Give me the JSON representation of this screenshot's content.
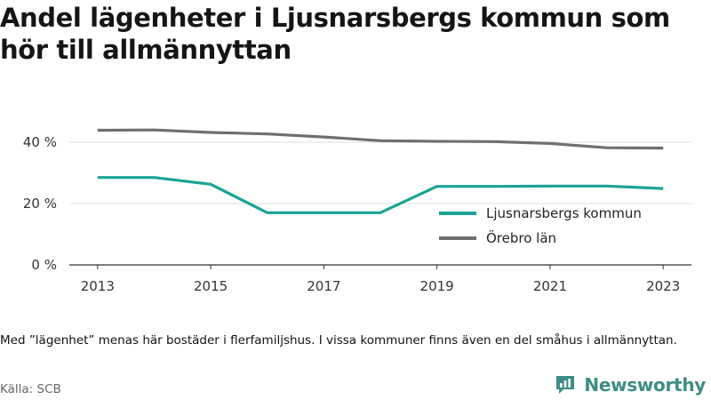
{
  "title": "Andel lägenheter i Ljusnarsbergs kommun som hör till allmännyttan",
  "footnote": "Med ”lägenhet” menas här bostäder i flerfamiljshus. I vissa kommuner finns även en del småhus i allmännyttan.",
  "source": "Källa: SCB",
  "brand": {
    "name": "Newsworthy",
    "icon": "newsworthy-logo-icon",
    "color": "#3e8c86"
  },
  "chart_data": {
    "type": "line",
    "x": [
      2013,
      2014,
      2015,
      2016,
      2017,
      2018,
      2019,
      2020,
      2021,
      2022,
      2023
    ],
    "x_tick_labels": [
      "2013",
      "2015",
      "2017",
      "2019",
      "2021",
      "2023"
    ],
    "y_tick_labels": [
      "0 %",
      "20 %",
      "40 %"
    ],
    "ylim": [
      0,
      40
    ],
    "grid": "horizontal",
    "legend_position": "bottom-right",
    "series": [
      {
        "name": "Ljusnarsbergs kommun",
        "color": "#1aa394",
        "values": [
          28.5,
          28.5,
          26.3,
          17.0,
          17.0,
          17.0,
          25.6,
          25.6,
          25.7,
          25.7,
          24.9
        ]
      },
      {
        "name": "Örebro län",
        "color": "#6e6e73",
        "values": [
          43.9,
          44.0,
          43.2,
          42.7,
          41.7,
          40.5,
          40.3,
          40.2,
          39.6,
          38.2,
          38.1
        ]
      }
    ]
  }
}
